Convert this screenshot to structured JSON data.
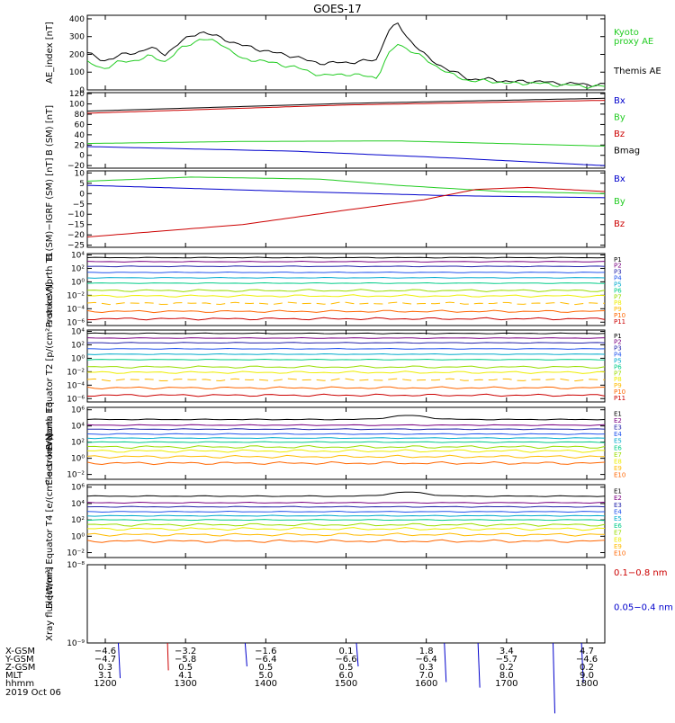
{
  "title": "GOES-17",
  "colors": {
    "black": "#000000",
    "red": "#cc0000",
    "green": "#22cc22",
    "blue": "#0000cc",
    "p": [
      "#000000",
      "#7a0080",
      "#2222aa",
      "#2255ee",
      "#00aacc",
      "#00cc88",
      "#99dd00",
      "#eeee00",
      "#ffbb00",
      "#ff6600",
      "#cc0000"
    ]
  },
  "chart_data": [
    {
      "type": "line",
      "ylabel": "AE_index [nT]",
      "ylim": [
        0,
        420
      ],
      "yticks": [
        "400",
        "300",
        "200",
        "100",
        "0"
      ],
      "ytick_values": [
        400,
        300,
        200,
        100,
        0
      ],
      "legend": [
        {
          "text": "Kyoto",
          "color": "green"
        },
        {
          "text": "proxy AE",
          "color": "green"
        },
        {
          "text": "Themis AE",
          "color": "black"
        }
      ],
      "series": [
        {
          "name": "Themis AE",
          "color": "black",
          "x": [
            0,
            0.03,
            0.06,
            0.09,
            0.12,
            0.15,
            0.18,
            0.22,
            0.26,
            0.3,
            0.33,
            0.36,
            0.4,
            0.43,
            0.46,
            0.5,
            0.53,
            0.56,
            0.58,
            0.6,
            0.62,
            0.66,
            0.7,
            0.74,
            0.78,
            0.82,
            0.86,
            0.9,
            0.94,
            0.97,
            1.0
          ],
          "y": [
            210,
            160,
            195,
            205,
            240,
            200,
            270,
            330,
            290,
            250,
            230,
            210,
            190,
            160,
            150,
            155,
            160,
            170,
            330,
            370,
            290,
            175,
            110,
            60,
            60,
            45,
            50,
            40,
            35,
            30,
            30
          ]
        },
        {
          "name": "Kyoto proxy AE",
          "color": "green",
          "x": [
            0,
            0.03,
            0.06,
            0.09,
            0.12,
            0.15,
            0.18,
            0.22,
            0.26,
            0.3,
            0.33,
            0.36,
            0.4,
            0.43,
            0.46,
            0.5,
            0.53,
            0.56,
            0.58,
            0.6,
            0.62,
            0.66,
            0.7,
            0.74,
            0.78,
            0.82,
            0.86,
            0.9,
            0.94,
            0.97,
            1.0
          ],
          "y": [
            155,
            120,
            155,
            165,
            190,
            160,
            230,
            290,
            260,
            170,
            170,
            150,
            130,
            100,
            80,
            90,
            80,
            70,
            190,
            260,
            230,
            160,
            90,
            50,
            50,
            35,
            40,
            30,
            25,
            20,
            20
          ]
        }
      ]
    },
    {
      "type": "line",
      "ylabel": "B (SM) [nT]",
      "ylim": [
        -25,
        122
      ],
      "yticks": [
        "120",
        "100",
        "80",
        "60",
        "40",
        "20",
        "0",
        "−20"
      ],
      "ytick_values": [
        120,
        100,
        80,
        60,
        40,
        20,
        0,
        -20
      ],
      "legend": [
        {
          "text": "Bx",
          "color": "blue"
        },
        {
          "text": "By",
          "color": "green"
        },
        {
          "text": "Bz",
          "color": "red"
        },
        {
          "text": "Bmag",
          "color": "black"
        }
      ],
      "series": [
        {
          "name": "Bmag",
          "color": "black",
          "x": [
            0,
            0.5,
            1.0
          ],
          "y": [
            86,
            101,
            111
          ]
        },
        {
          "name": "Bz",
          "color": "red",
          "x": [
            0,
            0.5,
            1.0
          ],
          "y": [
            82,
            98,
            107
          ]
        },
        {
          "name": "By",
          "color": "green",
          "x": [
            0,
            0.3,
            0.6,
            1.0
          ],
          "y": [
            23,
            27,
            28,
            18
          ]
        },
        {
          "name": "Bx",
          "color": "blue",
          "x": [
            0,
            0.4,
            0.7,
            1.0
          ],
          "y": [
            17,
            8,
            -5,
            -20
          ]
        }
      ]
    },
    {
      "type": "line",
      "ylabel": "B (SM)−IGRF (SM) [nT]",
      "ylim": [
        -26,
        11
      ],
      "yticks": [
        "10",
        "5",
        "0",
        "−5",
        "−10",
        "−15",
        "−20",
        "−25"
      ],
      "ytick_values": [
        10,
        5,
        0,
        -5,
        -10,
        -15,
        -20,
        -25
      ],
      "legend": [
        {
          "text": "Bx",
          "color": "blue"
        },
        {
          "text": "By",
          "color": "green"
        },
        {
          "text": "Bz",
          "color": "red"
        }
      ],
      "series": [
        {
          "name": "By",
          "color": "green",
          "x": [
            0,
            0.2,
            0.45,
            0.6,
            0.8,
            1.0
          ],
          "y": [
            6,
            8,
            7,
            4,
            1,
            0
          ]
        },
        {
          "name": "Bx",
          "color": "blue",
          "x": [
            0,
            0.4,
            0.7,
            1.0
          ],
          "y": [
            4,
            1,
            -1,
            -2
          ]
        },
        {
          "name": "Bz",
          "color": "red",
          "x": [
            0,
            0.1,
            0.3,
            0.5,
            0.65,
            0.75,
            0.85,
            1.0
          ],
          "y": [
            -21,
            -19,
            -15,
            -8,
            -3,
            2,
            3,
            1
          ]
        }
      ]
    },
    {
      "type": "line",
      "ylabel": "Protons North T1",
      "log": true,
      "ylim": [
        -6.5,
        4.2
      ],
      "yticks": [
        "10⁴",
        "10²",
        "10⁰",
        "10⁻²",
        "10⁻⁴",
        "10⁻⁶"
      ],
      "ytick_values": [
        4,
        2,
        0,
        -2,
        -4,
        -6
      ],
      "legend": [
        "P1",
        "P2",
        "P3",
        "P4",
        "P5",
        "P6",
        "P7",
        "P8",
        "P9",
        "P10",
        "P11"
      ],
      "channel_log_levels": [
        3.6,
        3.0,
        2.3,
        1.4,
        0.6,
        -0.2,
        -1.3,
        -2.1,
        -3.2,
        -4.4,
        -5.5
      ]
    },
    {
      "type": "line",
      "ylabel": "Protons Equator T2 [p/(cm²-s-sr-keV)]",
      "log": true,
      "ylim": [
        -6.5,
        4.2
      ],
      "yticks": [
        "10⁴",
        "10²",
        "10⁰",
        "10⁻²",
        "10⁻⁴",
        "10⁻⁶"
      ],
      "ytick_values": [
        4,
        2,
        0,
        -2,
        -4,
        -6
      ],
      "legend": [
        "P1",
        "P2",
        "P3",
        "P4",
        "P5",
        "P6",
        "P7",
        "P8",
        "P9",
        "P10",
        "P11"
      ],
      "channel_log_levels": [
        3.7,
        3.0,
        2.3,
        1.4,
        0.6,
        -0.2,
        -1.3,
        -2.1,
        -3.2,
        -4.4,
        -5.5
      ]
    },
    {
      "type": "line",
      "ylabel": "Electrons North T3",
      "log": true,
      "ylim": [
        -2.6,
        6.3
      ],
      "yticks": [
        "10⁶",
        "10⁴",
        "10²",
        "10⁰",
        "10⁻²"
      ],
      "ytick_values": [
        6,
        4,
        2,
        0,
        -2
      ],
      "legend": [
        "E1",
        "E2",
        "E3",
        "E4",
        "E5",
        "E6",
        "E7",
        "E8",
        "E9",
        "E10"
      ],
      "channel_log_levels": [
        4.8,
        4.1,
        3.6,
        3.0,
        2.5,
        2.0,
        1.4,
        0.9,
        0.2,
        -0.6
      ]
    },
    {
      "type": "line",
      "ylabel": "Electrons Equator T4 [e/(cm²-s-sr-keV)]",
      "log": true,
      "ylim": [
        -2.6,
        6.3
      ],
      "yticks": [
        "10⁶",
        "10⁴",
        "10²",
        "10⁰",
        "10⁻²"
      ],
      "ytick_values": [
        6,
        4,
        2,
        0,
        -2
      ],
      "legend": [
        "E1",
        "E2",
        "E3",
        "E4",
        "E5",
        "E6",
        "E7",
        "E8",
        "E9",
        "E10"
      ],
      "channel_log_levels": [
        4.9,
        4.1,
        3.6,
        3.0,
        2.5,
        2.0,
        1.4,
        0.9,
        0.2,
        -0.6
      ]
    },
    {
      "type": "line",
      "ylabel": "Xray flux [W/m²]",
      "log": true,
      "ylim": [
        -9,
        -8
      ],
      "yticks": [
        "10⁻⁸",
        "10⁻⁹"
      ],
      "ytick_values": [
        -8,
        -9
      ],
      "legend": [
        {
          "text": "0.1−0.8 nm",
          "color": "red"
        },
        {
          "text": "0.05−0.4 nm",
          "color": "blue"
        }
      ],
      "spikes": [
        {
          "x": 0.06,
          "top": -9.45,
          "color": "blue"
        },
        {
          "x": 0.155,
          "top": -9.35,
          "color": "red"
        },
        {
          "x": 0.305,
          "top": -9.3,
          "color": "blue"
        },
        {
          "x": 0.52,
          "top": -9.3,
          "color": "blue"
        },
        {
          "x": 0.69,
          "top": -9.5,
          "color": "blue"
        },
        {
          "x": 0.755,
          "top": -9.57,
          "color": "blue"
        },
        {
          "x": 0.9,
          "top": -9.9,
          "color": "blue"
        },
        {
          "x": 0.955,
          "top": -9.5,
          "color": "blue"
        }
      ]
    }
  ],
  "xaxis": {
    "times": [
      "1200",
      "1300",
      "1400",
      "1500",
      "1600",
      "1700",
      "1800"
    ],
    "rows": [
      {
        "label": "X-GSM",
        "values": [
          "−4.6",
          "−3.2",
          "−1.6",
          "0.1",
          "1.8",
          "3.4",
          "4.7"
        ]
      },
      {
        "label": "Y-GSM",
        "values": [
          "−4.7",
          "−5.8",
          "−6.4",
          "−6.6",
          "−6.4",
          "−5.7",
          "−4.6"
        ]
      },
      {
        "label": "Z-GSM",
        "values": [
          "0.3",
          "0.5",
          "0.5",
          "0.5",
          "0.3",
          "0.2",
          "0.2"
        ]
      },
      {
        "label": "MLT",
        "values": [
          "3.1",
          "4.1",
          "5.0",
          "6.0",
          "7.0",
          "8.0",
          "9.0"
        ]
      },
      {
        "label": "hhmm",
        "values": [
          "1200",
          "1300",
          "1400",
          "1500",
          "1600",
          "1700",
          "1800"
        ]
      }
    ],
    "date": "2019 Oct 06"
  }
}
